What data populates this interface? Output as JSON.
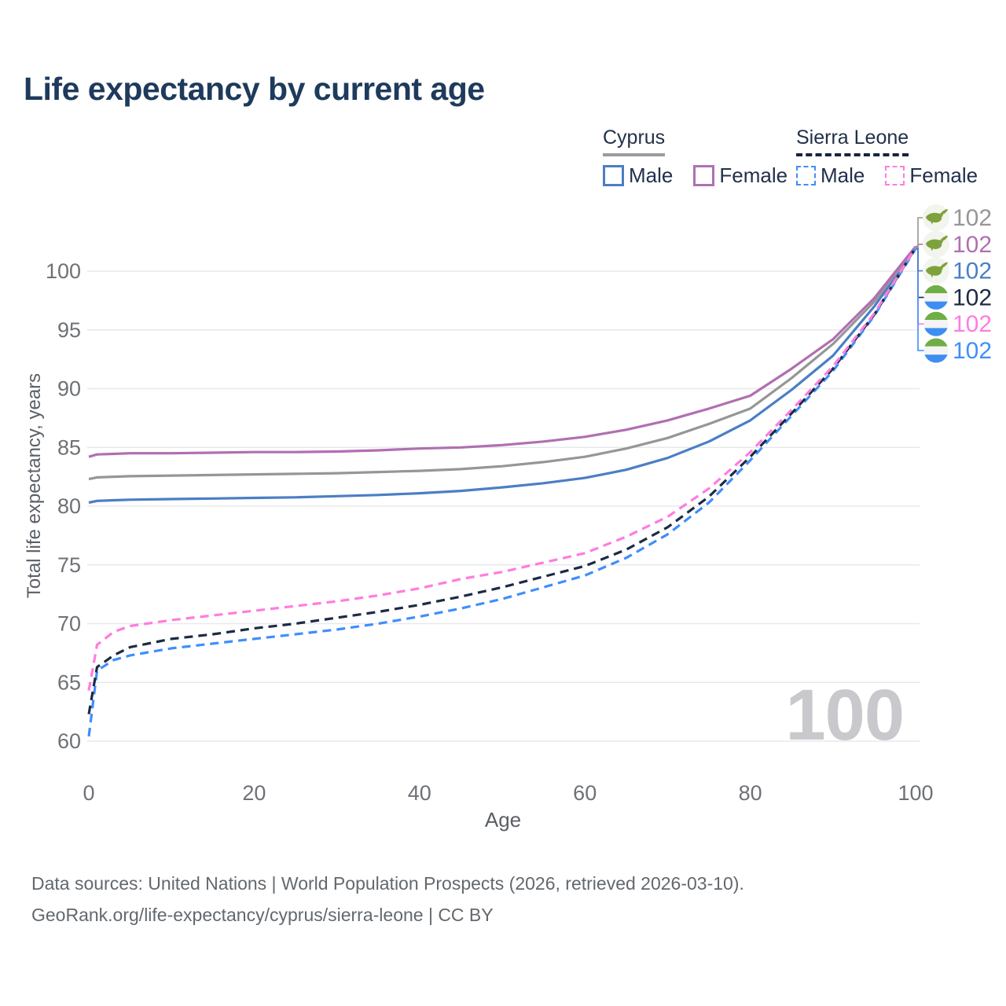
{
  "title": "Life expectancy by current age",
  "legend": {
    "groups": [
      {
        "label": "Cyprus",
        "line_style": "solid",
        "color": "#9a9aa0",
        "items": [
          {
            "label": "Male",
            "color": "#4b7ec5"
          },
          {
            "label": "Female",
            "color": "#b16fb1"
          }
        ]
      },
      {
        "label": "Sierra Leone",
        "line_style": "dashed",
        "color": "#16243d",
        "items": [
          {
            "label": "Male",
            "color": "#3f8efc"
          },
          {
            "label": "Female",
            "color": "#ff7ce0"
          }
        ]
      }
    ]
  },
  "watermark_age": "100",
  "footer": {
    "line1": "Data sources: United Nations | World Population Prospects (2026, retrieved 2026-03-10).",
    "line2": "GeoRank.org/life-expectancy/cyprus/sierra-leone | CC BY"
  },
  "chart_data": {
    "type": "line",
    "title": "Life expectancy by current age",
    "xlabel": "Age",
    "ylabel": "Total life expectancy, years",
    "x_ticks": [
      0,
      20,
      40,
      60,
      80,
      100
    ],
    "y_ticks": [
      60,
      65,
      70,
      75,
      80,
      85,
      90,
      95,
      100
    ],
    "xlim": [
      0,
      100
    ],
    "ylim": [
      60,
      102.5
    ],
    "grid": "horizontal",
    "legend_position": "top-right",
    "x": [
      0,
      1,
      3,
      5,
      10,
      15,
      20,
      25,
      30,
      35,
      40,
      45,
      50,
      55,
      60,
      65,
      70,
      75,
      80,
      85,
      90,
      95,
      100
    ],
    "series": [
      {
        "name": "Cyprus Total",
        "country": "Cyprus",
        "sex": "Total",
        "color": "#969696",
        "dash": false,
        "end_label": "102",
        "icon": "cyprus-map",
        "values": [
          82.3,
          82.45,
          82.5,
          82.55,
          82.6,
          82.65,
          82.7,
          82.75,
          82.8,
          82.9,
          83.0,
          83.15,
          83.4,
          83.75,
          84.2,
          84.9,
          85.8,
          87.0,
          88.3,
          90.9,
          93.8,
          97.4,
          102.0
        ]
      },
      {
        "name": "Cyprus Female",
        "country": "Cyprus",
        "sex": "Female",
        "color": "#b16fb1",
        "dash": false,
        "end_label": "102",
        "icon": "cyprus-map",
        "values": [
          84.2,
          84.4,
          84.45,
          84.5,
          84.5,
          84.55,
          84.6,
          84.6,
          84.65,
          84.75,
          84.9,
          85.0,
          85.2,
          85.5,
          85.9,
          86.5,
          87.3,
          88.3,
          89.4,
          91.7,
          94.2,
          97.7,
          102.1
        ]
      },
      {
        "name": "Cyprus Male",
        "country": "Cyprus",
        "sex": "Male",
        "color": "#4b7ec5",
        "dash": false,
        "end_label": "102",
        "icon": "cyprus-map",
        "values": [
          80.3,
          80.45,
          80.5,
          80.55,
          80.6,
          80.65,
          80.7,
          80.75,
          80.85,
          80.95,
          81.1,
          81.3,
          81.6,
          81.95,
          82.4,
          83.1,
          84.1,
          85.5,
          87.3,
          89.9,
          92.8,
          97.0,
          101.9
        ]
      },
      {
        "name": "Sierra Leone Total",
        "country": "Sierra Leone",
        "sex": "Total",
        "color": "#1c2b45",
        "dash": true,
        "end_label": "102",
        "icon": "sierra-leone-flag",
        "values": [
          62.3,
          66.3,
          67.3,
          68.0,
          68.7,
          69.1,
          69.6,
          70.0,
          70.5,
          71.0,
          71.6,
          72.3,
          73.1,
          74.0,
          74.9,
          76.3,
          78.2,
          80.8,
          84.2,
          87.9,
          91.7,
          96.3,
          102.0
        ]
      },
      {
        "name": "Sierra Leone Female",
        "country": "Sierra Leone",
        "sex": "Female",
        "color": "#ff7ce0",
        "dash": true,
        "end_label": "102",
        "icon": "sierra-leone-flag",
        "values": [
          64.3,
          68.2,
          69.3,
          69.8,
          70.3,
          70.7,
          71.1,
          71.5,
          71.9,
          72.4,
          73.0,
          73.8,
          74.4,
          75.2,
          76.0,
          77.4,
          79.1,
          81.5,
          84.6,
          88.2,
          91.9,
          96.4,
          102.0
        ]
      },
      {
        "name": "Sierra Leone Male",
        "country": "Sierra Leone",
        "sex": "Male",
        "color": "#3f8efc",
        "dash": true,
        "end_label": "102",
        "icon": "sierra-leone-flag",
        "values": [
          60.4,
          66.0,
          66.9,
          67.3,
          67.9,
          68.3,
          68.7,
          69.1,
          69.5,
          70.0,
          70.6,
          71.3,
          72.1,
          73.1,
          74.1,
          75.6,
          77.6,
          80.3,
          83.9,
          87.7,
          91.5,
          96.2,
          101.9
        ]
      }
    ]
  }
}
